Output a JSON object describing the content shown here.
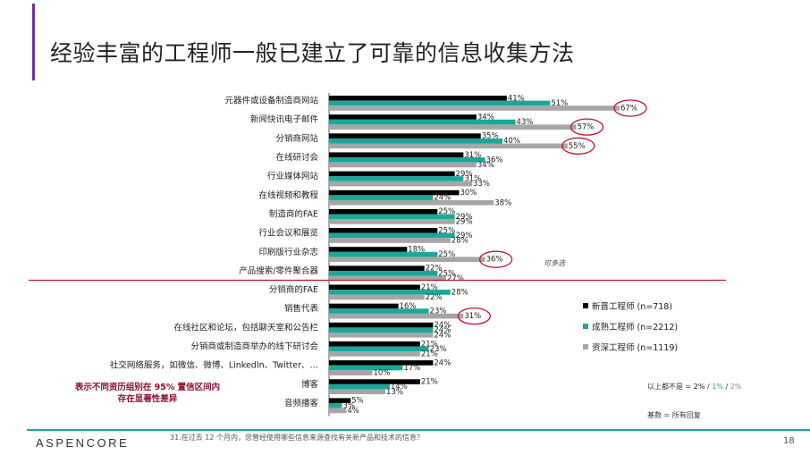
{
  "page": {
    "title": "经验丰富的工程师一般已建立了可靠的信息收集方法",
    "multi_select_note": "可多选",
    "significance_note_line1": "表示不同资历组别在 95% 置信区间内",
    "significance_note_line2": "存在显著性差异",
    "sig_levels_prefix": "以上都不是 = ",
    "sig_levels": [
      {
        "text": "2%",
        "color": "#111111"
      },
      {
        "text": "1%",
        "color": "#1aa79a"
      },
      {
        "text": "2%",
        "color": "#8a8a8a"
      }
    ],
    "base_note": "基数 = 所有回复",
    "question": "31.在过去 12 个月内，您曾经使用哪些信息来源查找有关新产品和技术的信息？",
    "logo": "ASPENCORE",
    "page_number": "18"
  },
  "colors": {
    "accent": "#6b2fa0",
    "teal": "#1aa79a",
    "highlight_circle": "#c0152f"
  },
  "chart_data": {
    "type": "bar",
    "orientation": "horizontal",
    "unit": "%",
    "xlim": [
      0,
      100
    ],
    "categories": [
      "元器件或设备制造商网站",
      "新闻快讯电子邮件",
      "分销商网站",
      "在线研讨会",
      "行业媒体网站",
      "在线视频和教程",
      "制造商的FAE",
      "行业会议和展览",
      "印刷版行业杂志",
      "产品搜索/零件聚合器",
      "分销商的FAE",
      "销售代表",
      "在线社区和论坛，包括聊天室和公告栏",
      "分销商或制造商举办的线下研讨会",
      "社交网络服务，如微信、微博、LinkedIn、Twitter、…",
      "博客",
      "音频播客"
    ],
    "series": [
      {
        "name": "新晋工程师 (n=718)",
        "color": "#000000",
        "values": [
          41,
          34,
          35,
          31,
          29,
          30,
          25,
          25,
          18,
          22,
          21,
          16,
          24,
          21,
          24,
          21,
          5
        ]
      },
      {
        "name": "成熟工程师 (n=2212)",
        "color": "#1aa79a",
        "values": [
          51,
          43,
          40,
          36,
          31,
          24,
          29,
          29,
          25,
          25,
          28,
          23,
          24,
          23,
          17,
          14,
          3
        ]
      },
      {
        "name": "资深工程师 (n=1119)",
        "color": "#a6a6a6",
        "values": [
          67,
          57,
          55,
          34,
          33,
          38,
          29,
          28,
          36,
          27,
          22,
          31,
          24,
          21,
          10,
          13,
          4
        ]
      }
    ],
    "highlighted": [
      {
        "category_index": 0,
        "series_index": 2
      },
      {
        "category_index": 1,
        "series_index": 2
      },
      {
        "category_index": 2,
        "series_index": 2
      },
      {
        "category_index": 8,
        "series_index": 2
      },
      {
        "category_index": 11,
        "series_index": 2
      }
    ],
    "divider_after_category_index": 9
  }
}
